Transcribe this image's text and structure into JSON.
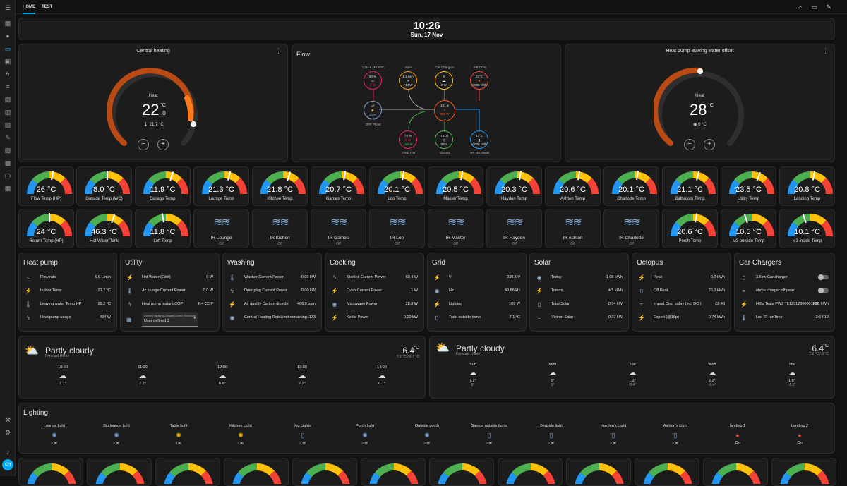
{
  "tabs": [
    "HOME",
    "TEST"
  ],
  "clock": {
    "time": "10:26",
    "date": "Sun, 17 Nov"
  },
  "heating": {
    "title": "Central heating",
    "mode": "Heat",
    "target_int": "22",
    "target_dec": ".0",
    "unit": "°C",
    "current": "21.7 °C",
    "minus": "−",
    "plus": "+",
    "setpoint_fraction": 0.75
  },
  "offset": {
    "title": "Heat pump leaving water offset",
    "mode": "Heat",
    "target": "28",
    "unit": "°C",
    "current": "0 °C",
    "minus": "−",
    "plus": "+",
    "setpoint_fraction": 0.5
  },
  "flow": {
    "title": "Flow",
    "nodes": {
      "v2h": {
        "label": "V2H & M3 SOC",
        "l1": "50 %",
        "l2": "0 W"
      },
      "solar": {
        "label": "Solar",
        "l1": "1.1 kwh",
        "l2": "743 W"
      },
      "car": {
        "label": "Car Chargers",
        "l1": "0",
        "l2": "0 W"
      },
      "hp": {
        "label": "HP DCH",
        "l1": "22°C",
        "l2": "2,000 kWh"
      },
      "grid": {
        "label": "OFF PEAK",
        "l1": "off",
        "l2": "14 W",
        "l3": "0 W"
      },
      "home": {
        "label": "",
        "l1": "181 w",
        "l2": "890 W"
      },
      "battery": {
        "label": "Tesla PW",
        "l1": "79 %",
        "l2": "0 W",
        "l3": "160 W"
      },
      "victron": {
        "label": "Victron",
        "l1": "-781w",
        "l2": "92%"
      },
      "hotwater": {
        "label": "HP Hot Water",
        "l1": "47°C",
        "l2": "2,000 kWh"
      }
    }
  },
  "gauges_row1": [
    {
      "value": "26 °C",
      "label": "Flow Temp (HP)",
      "level": 0.55
    },
    {
      "value": "8.0 °C",
      "label": "Outside Temp (WC)",
      "level": 0.5
    },
    {
      "value": "11.9 °C",
      "label": "Garage Temp",
      "level": 0.6
    },
    {
      "value": "21.3 °C",
      "label": "Lounge Temp",
      "level": 0.58
    },
    {
      "value": "21.8 °C",
      "label": "Kitchen Temp",
      "level": 0.6
    },
    {
      "value": "20.7 °C",
      "label": "Games Temp",
      "level": 0.55
    },
    {
      "value": "20.1 °C",
      "label": "Loo Temp",
      "level": 0.55
    },
    {
      "value": "20.5 °C",
      "label": "Master Temp",
      "level": 0.55
    },
    {
      "value": "20.3 °C",
      "label": "Hayden Temp",
      "level": 0.55
    },
    {
      "value": "20.6 °C",
      "label": "Ashton Temp",
      "level": 0.55
    },
    {
      "value": "20.1 °C",
      "label": "Charlotte Temp",
      "level": 0.55
    },
    {
      "value": "21.1 °C",
      "label": "Bathroom Temp",
      "level": 0.58
    },
    {
      "value": "23.5 °C",
      "label": "Utility Temp",
      "level": 0.62
    },
    {
      "value": "20.8 °C",
      "label": "Landing Temp",
      "level": 0.56
    }
  ],
  "row2": [
    {
      "kind": "gauge",
      "value": "24 °C",
      "label": "Return Temp (HP)",
      "level": 0.5
    },
    {
      "kind": "gauge",
      "value": "46.3 °C",
      "label": "Hot Water Tank",
      "level": 0.6
    },
    {
      "kind": "gauge",
      "value": "11.8 °C",
      "label": "Loft Temp",
      "level": 0.45
    },
    {
      "kind": "ir",
      "label": "IR Lounge",
      "state": "Off"
    },
    {
      "kind": "ir",
      "label": "IR Kichen",
      "state": "Off"
    },
    {
      "kind": "ir",
      "label": "IR Games",
      "state": "Off"
    },
    {
      "kind": "ir",
      "label": "IR Loo",
      "state": "Off"
    },
    {
      "kind": "ir",
      "label": "IR Master",
      "state": "Off"
    },
    {
      "kind": "ir",
      "label": "IR Hayden",
      "state": "Off"
    },
    {
      "kind": "ir",
      "label": "IR Ashton",
      "state": "Off"
    },
    {
      "kind": "ir",
      "label": "IR Charlotte",
      "state": "Off"
    },
    {
      "kind": "gauge",
      "value": "20.6 °C",
      "label": "Porch Temp",
      "level": 0.55
    },
    {
      "kind": "gauge",
      "value": "10.5 °C",
      "label": "M3 outside Temp",
      "level": 0.4
    },
    {
      "kind": "gauge",
      "value": "10.1 °C",
      "label": "M3 inside Temp",
      "level": 0.4
    }
  ],
  "entity_cards": [
    {
      "title": "Heat pump",
      "rows": [
        [
          "Flow rate",
          "6.9 L/min"
        ],
        [
          "Indoor Temp",
          "21.7 °C"
        ],
        [
          "Leaving water Temp HP",
          "29.2 °C"
        ],
        [
          "Heat pump usage",
          "434 W"
        ]
      ]
    },
    {
      "title": "Utility",
      "rows": [
        [
          "Hot Water (Eddi)",
          "0 W"
        ],
        [
          "Ac lounge Current Power",
          "0.0 W"
        ],
        [
          "Heat pump instant COP",
          "6.4 COP"
        ]
      ],
      "select_label": "Central Heating ClimateControl Schedule",
      "select_value": "User defined 2"
    },
    {
      "title": "Washing",
      "rows": [
        [
          "Washer Current Power",
          "0.00 kW"
        ],
        [
          "Drier plug Current Power",
          "0.00 kW"
        ],
        [
          "Air quality Carbon dioxide",
          "406.0 ppm"
        ],
        [
          "Central Heating RateLimit remaining…",
          "133"
        ]
      ]
    },
    {
      "title": "Cooking",
      "rows": [
        [
          "Starlink Current Power",
          "60.4 W"
        ],
        [
          "Oven Current Power",
          "1 W"
        ],
        [
          "Microwave Power",
          "28.8 W"
        ],
        [
          "Kettle Power",
          "0.00 kW"
        ]
      ]
    },
    {
      "title": "Grid",
      "rows": [
        [
          "V",
          "239.5 V"
        ],
        [
          "Hz",
          "49.86 Hz"
        ],
        [
          "Lighting",
          "169 W"
        ],
        [
          "Tado outside temp",
          "7.1 °C"
        ]
      ]
    },
    {
      "title": "Solar",
      "rows": [
        [
          "Today",
          "1.08 kWh"
        ],
        [
          "Tomoz",
          "4.5 kWh"
        ],
        [
          "Total Solar",
          "0.74 kW"
        ],
        [
          "Victron Solar",
          "0.37 kW"
        ]
      ]
    },
    {
      "title": "Octopus",
      "rows": [
        [
          "Peak",
          "0.0 kWh"
        ],
        [
          "Off Peak",
          "26.0 kWh"
        ],
        [
          "import Cost today (incl DC )",
          "£2.48"
        ],
        [
          "Export (@15p)",
          "0.74 kWh"
        ]
      ]
    },
    {
      "title": "Car Chargers",
      "rows": [
        [
          "3.6kw Car charger",
          ""
        ],
        [
          "ohme charger off peak",
          ""
        ],
        [
          "Hill's Tesla PW2 TL12312300001FG",
          "10.5 kWh"
        ],
        [
          "Loo IR runTime",
          "2:54:12"
        ]
      ]
    }
  ],
  "weather1": {
    "condition": "Partly cloudy",
    "location": "Forecast Home",
    "temp": "6.4",
    "unit": "°C",
    "hilo": "7.2 °C / 6.7 °C",
    "forecast": [
      {
        "t": "10:00",
        "v": "7.1°"
      },
      {
        "t": "11:00",
        "v": "7.2°"
      },
      {
        "t": "12:00",
        "v": "6.8°"
      },
      {
        "t": "13:00",
        "v": "7.2°"
      },
      {
        "t": "14:00",
        "v": "6.7°"
      }
    ]
  },
  "weather2": {
    "condition": "Partly cloudy",
    "location": "Forecast Home",
    "temp": "6.4",
    "unit": "°C",
    "hilo": "7.2 °C / 6 °C",
    "forecast": [
      {
        "t": "Sun",
        "v": "7.2°",
        "lo": "6°"
      },
      {
        "t": "Mon",
        "v": "5°",
        "lo": "1°"
      },
      {
        "t": "Tue",
        "v": "1.3°",
        "lo": "-0.4°"
      },
      {
        "t": "Wed",
        "v": "2.3°",
        "lo": "-0.4°"
      },
      {
        "t": "Thu",
        "v": "1.8°",
        "lo": "-1.5°"
      }
    ]
  },
  "lighting": {
    "title": "Lighting",
    "items": [
      {
        "name": "Lounge light",
        "state": "Off",
        "icon": "bulb-outline"
      },
      {
        "name": "Big lounge light",
        "state": "Off",
        "icon": "bulb-outline"
      },
      {
        "name": "Table light",
        "state": "On",
        "icon": "bulb-on"
      },
      {
        "name": "Kitchen Light",
        "state": "On",
        "icon": "bulb-on"
      },
      {
        "name": "loo Lights",
        "state": "Off",
        "icon": "plug"
      },
      {
        "name": "Porch light",
        "state": "Off",
        "icon": "bulb-outline"
      },
      {
        "name": "Outside porch",
        "state": "Off",
        "icon": "bulb-outline"
      },
      {
        "name": "Garage outside lights",
        "state": "Off",
        "icon": "plug"
      },
      {
        "name": "Bedside light",
        "state": "Off",
        "icon": "plug"
      },
      {
        "name": "Hayden's Light",
        "state": "Off",
        "icon": "plug"
      },
      {
        "name": "Ashton's Light",
        "state": "Off",
        "icon": "plug"
      },
      {
        "name": "landing 1",
        "state": "On",
        "icon": "bulb-red"
      },
      {
        "name": "Landing 2",
        "state": "On",
        "icon": "bulb-red"
      }
    ]
  },
  "colors": {
    "accent": "#03a9f4",
    "orange": "#d35400",
    "gauge_blue": "#2196f3",
    "gauge_green": "#4caf50",
    "gauge_yellow": "#ffc107",
    "gauge_red": "#f44336"
  },
  "user_initials": "CH"
}
